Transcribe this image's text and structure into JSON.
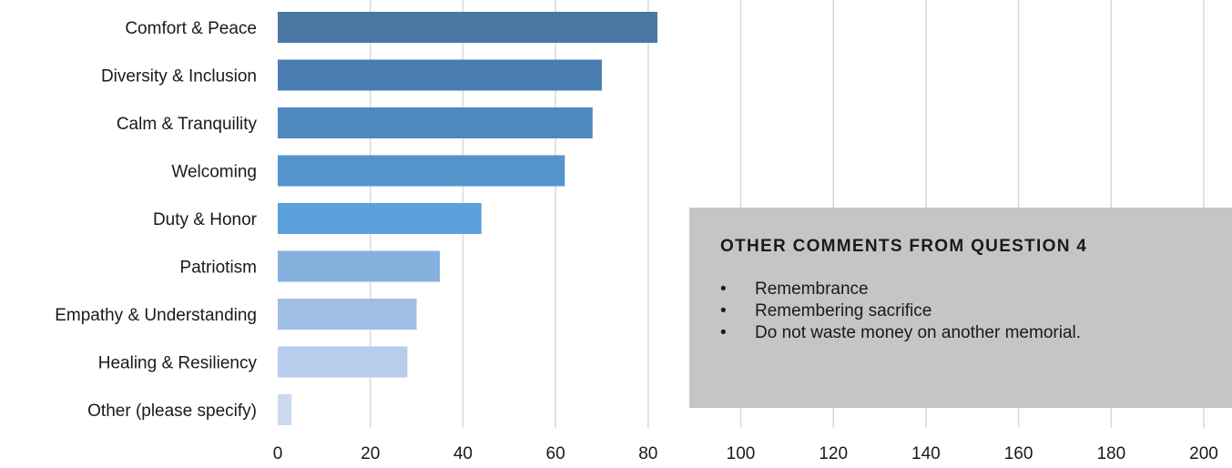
{
  "chart_data": {
    "type": "bar",
    "orientation": "horizontal",
    "categories": [
      "Comfort & Peace",
      "Diversity & Inclusion",
      "Calm & Tranquility",
      "Welcoming",
      "Duty & Honor",
      "Patriotism",
      "Empathy & Understanding",
      "Healing & Resiliency",
      "Other (please specify)"
    ],
    "values": [
      82,
      70,
      68,
      62,
      44,
      35,
      30,
      28,
      3
    ],
    "bar_colors": [
      "#4a77a3",
      "#4a7db1",
      "#4f87bf",
      "#5593cc",
      "#5b9fdc",
      "#86b0dd",
      "#a0bde3",
      "#b7cdeb",
      "#cbdaf1"
    ],
    "xlim": [
      0,
      200
    ],
    "xticks": [
      "0",
      "20",
      "40",
      "60",
      "80",
      "100",
      "120",
      "140",
      "160",
      "180",
      "200"
    ],
    "grid": true,
    "legend": false,
    "title": "",
    "xlabel": "",
    "ylabel": ""
  },
  "comments": {
    "title": "OTHER COMMENTS FROM QUESTION 4",
    "bullet": "•",
    "items": [
      "Remembrance",
      "Remembering sacrifice",
      "Do not waste money on another memorial."
    ]
  }
}
